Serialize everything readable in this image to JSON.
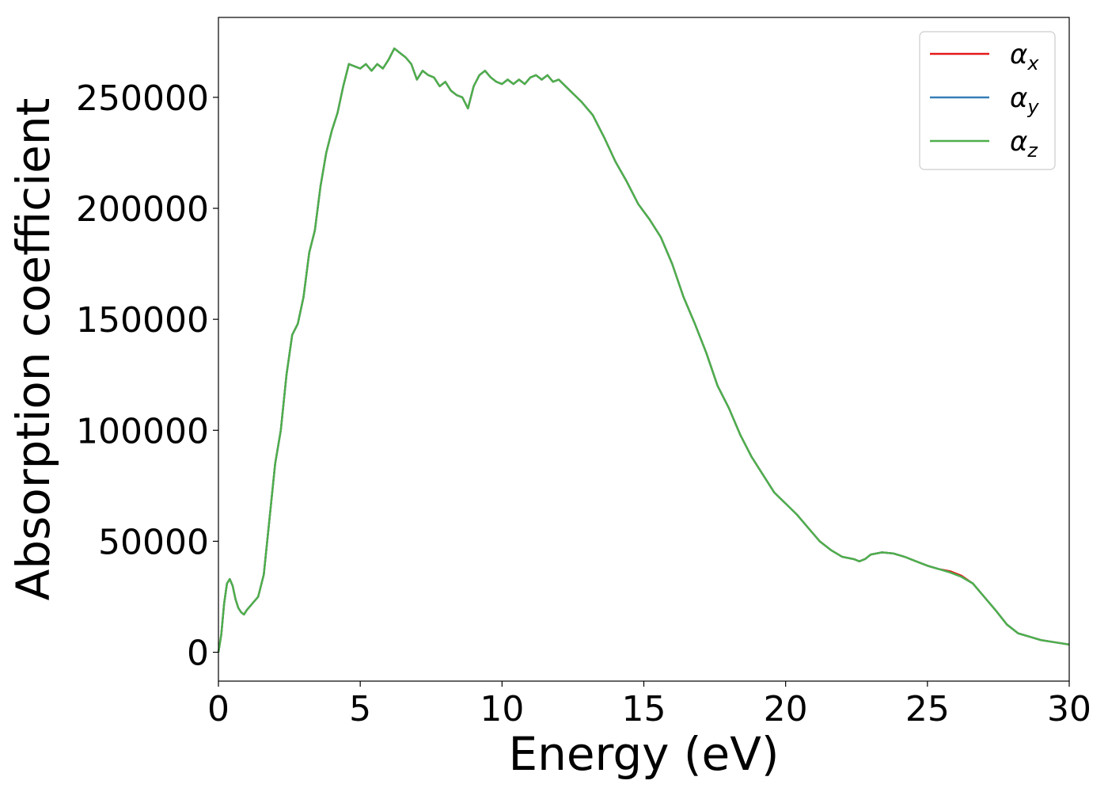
{
  "chart_data": {
    "type": "line",
    "title": "",
    "xlabel": "Energy (eV)",
    "ylabel": "Absorption coefficient",
    "xlim": [
      0,
      30
    ],
    "ylim": [
      -13000,
      286000
    ],
    "xticks": [
      0,
      5,
      10,
      15,
      20,
      25,
      30
    ],
    "xtick_labels": [
      "0",
      "5",
      "10",
      "15",
      "20",
      "25",
      "30"
    ],
    "yticks": [
      0,
      50000,
      100000,
      150000,
      200000,
      250000
    ],
    "ytick_labels": [
      "0",
      "50000",
      "100000",
      "150000",
      "200000",
      "250000"
    ],
    "grid": false,
    "legend_position": "top-right",
    "colors": {
      "alpha_x": "#e41a1c",
      "alpha_y": "#377eb8",
      "alpha_z": "#4daf4a"
    },
    "x": [
      0,
      0.1,
      0.2,
      0.3,
      0.4,
      0.5,
      0.6,
      0.7,
      0.8,
      0.9,
      1.0,
      1.2,
      1.4,
      1.6,
      1.8,
      2.0,
      2.2,
      2.4,
      2.6,
      2.8,
      3.0,
      3.2,
      3.4,
      3.6,
      3.8,
      4.0,
      4.2,
      4.4,
      4.6,
      4.8,
      5.0,
      5.2,
      5.4,
      5.6,
      5.8,
      6.0,
      6.2,
      6.4,
      6.6,
      6.8,
      7.0,
      7.2,
      7.4,
      7.6,
      7.8,
      8.0,
      8.2,
      8.4,
      8.6,
      8.8,
      9.0,
      9.2,
      9.4,
      9.6,
      9.8,
      10.0,
      10.2,
      10.4,
      10.6,
      10.8,
      11.0,
      11.2,
      11.4,
      11.6,
      11.8,
      12.0,
      12.4,
      12.8,
      13.2,
      13.6,
      14.0,
      14.4,
      14.8,
      15.2,
      15.6,
      16.0,
      16.4,
      16.8,
      17.2,
      17.6,
      18.0,
      18.4,
      18.8,
      19.2,
      19.6,
      20.0,
      20.4,
      20.8,
      21.2,
      21.6,
      22.0,
      22.4,
      22.6,
      22.8,
      23.0,
      23.4,
      23.8,
      24.2,
      24.6,
      25.0,
      25.4,
      25.8,
      26.2,
      26.6,
      27.0,
      27.4,
      27.8,
      28.2,
      28.6,
      29.0,
      29.5,
      30.0
    ],
    "series": [
      {
        "name": "α_x",
        "values": [
          0,
          8000,
          22000,
          31000,
          33000,
          30000,
          24000,
          20000,
          18000,
          17000,
          19000,
          22000,
          25000,
          35000,
          60000,
          85000,
          100000,
          125000,
          143000,
          148000,
          160000,
          180000,
          190000,
          210000,
          225000,
          235000,
          243000,
          255000,
          265000,
          264000,
          263000,
          265000,
          262000,
          265000,
          263000,
          267000,
          272000,
          270000,
          268000,
          265000,
          258000,
          262000,
          260000,
          259000,
          255000,
          257000,
          253000,
          251000,
          250000,
          245000,
          255000,
          260000,
          262000,
          259000,
          257000,
          256000,
          258000,
          256000,
          258000,
          256000,
          259000,
          260000,
          258000,
          260000,
          257000,
          258000,
          253000,
          248000,
          242000,
          232000,
          221000,
          212000,
          202000,
          195000,
          187000,
          175000,
          160000,
          148000,
          135000,
          120000,
          110000,
          98000,
          88000,
          80000,
          72000,
          67000,
          62000,
          56000,
          50000,
          46000,
          43000,
          42000,
          41000,
          42000,
          44000,
          45000,
          44500,
          43000,
          41000,
          39000,
          37500,
          36500,
          34500,
          31000,
          25000,
          19000,
          12500,
          8500,
          7000,
          5500,
          4500,
          3500
        ]
      },
      {
        "name": "α_y",
        "values": [
          0,
          8000,
          22000,
          31000,
          33000,
          30000,
          24000,
          20000,
          18000,
          17000,
          19000,
          22000,
          25000,
          35000,
          60000,
          85000,
          100000,
          125000,
          143000,
          148000,
          160000,
          180000,
          190000,
          210000,
          225000,
          235000,
          243000,
          255000,
          265000,
          264000,
          263000,
          265000,
          262000,
          265000,
          263000,
          267000,
          272000,
          270000,
          268000,
          265000,
          258000,
          262000,
          260000,
          259000,
          255000,
          257000,
          253000,
          251000,
          250000,
          245000,
          255000,
          260000,
          262000,
          259000,
          257000,
          256000,
          258000,
          256000,
          258000,
          256000,
          259000,
          260000,
          258000,
          260000,
          257000,
          258000,
          253000,
          248000,
          242000,
          232000,
          221000,
          212000,
          202000,
          195000,
          187000,
          175000,
          160000,
          148000,
          135000,
          120000,
          110000,
          98000,
          88000,
          80000,
          72000,
          67000,
          62000,
          56000,
          50000,
          46000,
          43000,
          42000,
          41000,
          42000,
          44000,
          45000,
          44500,
          43000,
          41000,
          39000,
          37500,
          36000,
          34000,
          31000,
          25000,
          19000,
          12500,
          8500,
          7000,
          5500,
          4500,
          3500
        ]
      },
      {
        "name": "α_z",
        "values": [
          0,
          8000,
          22000,
          31000,
          33000,
          30000,
          24000,
          20000,
          18000,
          17000,
          19000,
          22000,
          25000,
          35000,
          60000,
          85000,
          100000,
          125000,
          143000,
          148000,
          160000,
          180000,
          190000,
          210000,
          225000,
          235000,
          243000,
          255000,
          265000,
          264000,
          263000,
          265000,
          262000,
          265000,
          263000,
          267000,
          272000,
          270000,
          268000,
          265000,
          258000,
          262000,
          260000,
          259000,
          255000,
          257000,
          253000,
          251000,
          250000,
          245000,
          255000,
          260000,
          262000,
          259000,
          257000,
          256000,
          258000,
          256000,
          258000,
          256000,
          259000,
          260000,
          258000,
          260000,
          257000,
          258000,
          253000,
          248000,
          242000,
          232000,
          221000,
          212000,
          202000,
          195000,
          187000,
          175000,
          160000,
          148000,
          135000,
          120000,
          110000,
          98000,
          88000,
          80000,
          72000,
          67000,
          62000,
          56000,
          50000,
          46000,
          43000,
          42000,
          41000,
          42000,
          44000,
          45000,
          44500,
          43000,
          41000,
          39000,
          37500,
          36000,
          34000,
          31000,
          25000,
          19000,
          12500,
          8500,
          7000,
          5500,
          4500,
          3500
        ]
      }
    ],
    "legend": [
      {
        "symbol": "α",
        "sub": "x",
        "key": "alpha_x"
      },
      {
        "symbol": "α",
        "sub": "y",
        "key": "alpha_y"
      },
      {
        "symbol": "α",
        "sub": "z",
        "key": "alpha_z"
      }
    ]
  }
}
